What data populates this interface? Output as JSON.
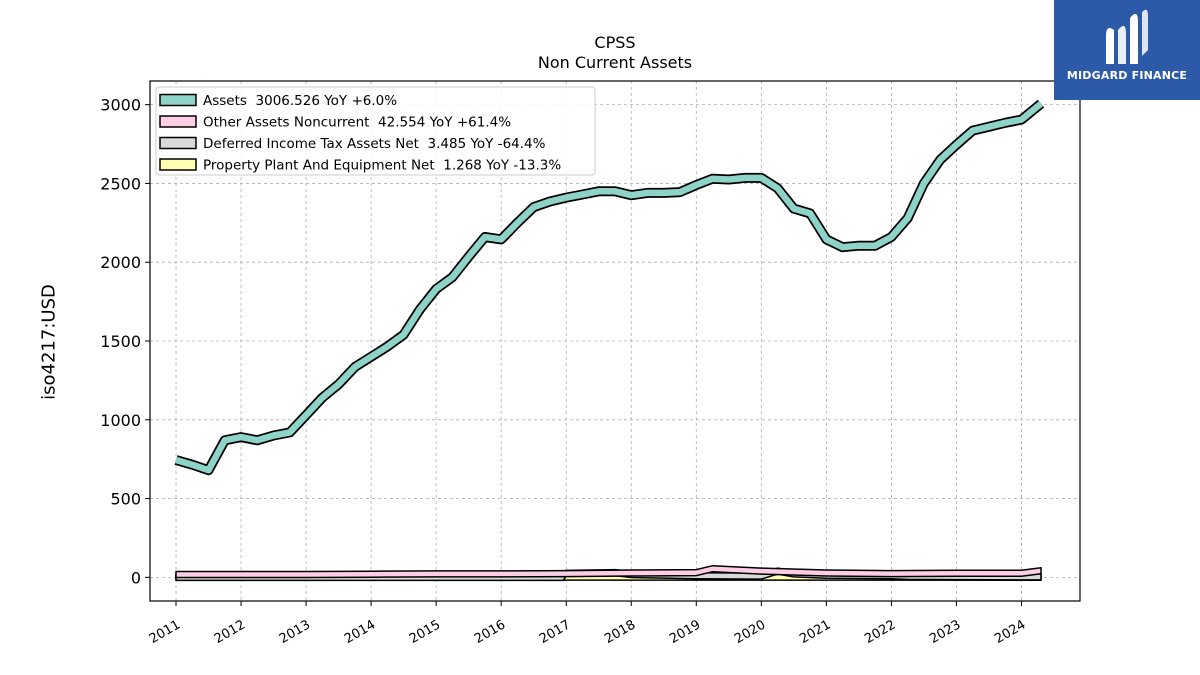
{
  "chart_data": {
    "type": "area",
    "title": "CPSS",
    "subtitle": "Non Current  Assets",
    "ylabel": "iso4217:USD",
    "xlabel": "",
    "xlim": [
      2010.6,
      2024.9
    ],
    "ylim": [
      -150,
      3150
    ],
    "yticks": [
      0,
      500,
      1000,
      1500,
      2000,
      2500,
      3000
    ],
    "xticks": [
      "2011",
      "2012",
      "2013",
      "2014",
      "2015",
      "2016",
      "2017",
      "2018",
      "2019",
      "2020",
      "2021",
      "2022",
      "2023",
      "2024"
    ],
    "grid": true,
    "legend_position": "top-left",
    "series": [
      {
        "name": "Assets  3006.526 YoY +6.0%",
        "color": "#8dd3c7",
        "x": [
          2011.0,
          2011.25,
          2011.5,
          2011.75,
          2012.0,
          2012.25,
          2012.5,
          2012.75,
          2013.0,
          2013.25,
          2013.5,
          2013.75,
          2014.0,
          2014.25,
          2014.5,
          2014.75,
          2015.0,
          2015.25,
          2015.5,
          2015.75,
          2016.0,
          2016.25,
          2016.5,
          2016.75,
          2017.0,
          2017.25,
          2017.5,
          2017.75,
          2018.0,
          2018.25,
          2018.5,
          2018.75,
          2019.0,
          2019.25,
          2019.5,
          2019.75,
          2020.0,
          2020.25,
          2020.5,
          2020.75,
          2021.0,
          2021.25,
          2021.5,
          2021.75,
          2022.0,
          2022.25,
          2022.5,
          2022.75,
          2023.0,
          2023.25,
          2023.5,
          2023.75,
          2024.0,
          2024.3
        ],
        "values": [
          745,
          715,
          680,
          870,
          890,
          870,
          900,
          920,
          1030,
          1140,
          1225,
          1335,
          1400,
          1465,
          1540,
          1700,
          1830,
          1905,
          2035,
          2160,
          2145,
          2250,
          2350,
          2385,
          2410,
          2430,
          2450,
          2450,
          2425,
          2440,
          2440,
          2445,
          2490,
          2530,
          2525,
          2535,
          2535,
          2470,
          2340,
          2310,
          2145,
          2095,
          2105,
          2105,
          2160,
          2280,
          2500,
          2650,
          2745,
          2835,
          2860,
          2885,
          2905,
          3006.526
        ]
      },
      {
        "name": "Other Assets Noncurrent  42.554 YoY +61.4%",
        "color": "#fccde5",
        "x": [
          2011.0,
          2012.0,
          2013.0,
          2014.0,
          2015.0,
          2016.0,
          2017.0,
          2018.0,
          2019.0,
          2019.25,
          2020.0,
          2021.0,
          2022.0,
          2023.0,
          2024.0,
          2024.3
        ],
        "values": [
          18,
          18,
          18,
          20,
          22,
          22,
          24,
          28,
          30,
          55,
          40,
          28,
          24,
          26,
          26,
          42.554
        ]
      },
      {
        "name": "Deferred Income Tax Assets Net  3.485 YoY -64.4%",
        "color": "#d9d9d9",
        "x": [
          2011.0,
          2012.0,
          2013.0,
          2014.0,
          2015.0,
          2016.0,
          2016.95,
          2017.0,
          2017.75,
          2018.0,
          2019.0,
          2020.0,
          2020.25,
          2020.5,
          2021.0,
          2022.0,
          2022.25,
          2023.0,
          2024.0,
          2024.3
        ],
        "values": [
          0,
          0,
          0,
          0,
          0,
          0,
          0,
          25,
          30,
          18,
          10,
          8,
          40,
          22,
          14,
          10,
          6,
          5,
          3,
          3.485
        ]
      },
      {
        "name": "Property Plant And Equipment Net  1.268 YoY -13.3%",
        "color": "#ffffb3",
        "x": [
          2011.0,
          2024.3
        ],
        "values": [
          1.4,
          1.268
        ]
      }
    ]
  },
  "logo": {
    "text": "MIDGARD FINANCE",
    "color": "#2c5aa8"
  }
}
